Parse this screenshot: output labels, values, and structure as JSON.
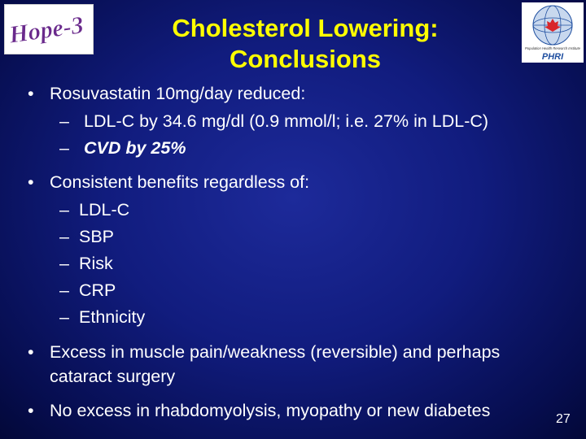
{
  "logo_left": {
    "text": "Hope-3"
  },
  "logo_right": {
    "text": "PHRI",
    "tagline": "Population Health Research Institute",
    "icon": "globe-icon"
  },
  "title": {
    "line1": "Cholesterol Lowering:",
    "line2": "Conclusions"
  },
  "bullet_char": "•",
  "dash_char": "–",
  "bullets": [
    {
      "text": "Rosuvastatin 10mg/day reduced:",
      "subs": [
        "LDL-C by 34.6 mg/dl (0.9 mmol/l; i.e. 27% in LDL-C)",
        "CVD by 25%"
      ]
    },
    {
      "text": "Consistent benefits regardless of:",
      "subs": [
        "LDL-C",
        "SBP",
        "Risk",
        "CRP",
        "Ethnicity"
      ]
    },
    {
      "text_line1": "Excess in muscle pain/weakness (reversible) and  perhaps",
      "text_line2": "cataract surgery"
    },
    {
      "text": "No excess in rhabdomyolysis, myopathy or  new diabetes"
    }
  ],
  "page_number": "27",
  "colors": {
    "title": "#ffff00",
    "text": "#ffffff",
    "background": "#111c7e",
    "logo_hope_text": "#6a2a8c",
    "phri_red": "#d8262b",
    "phri_blue": "#1f4fa0"
  }
}
